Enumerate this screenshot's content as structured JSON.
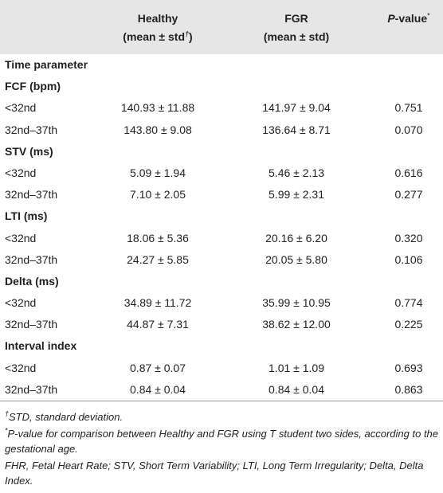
{
  "table": {
    "header": {
      "healthy": {
        "line1": "Healthy",
        "line2": "(mean ± std",
        "mark": "†",
        "close": ")"
      },
      "fgr": {
        "line1": "FGR",
        "line2": "(mean ± std)"
      },
      "pvalue": {
        "italic": "P",
        "rest": "-value",
        "mark": "*"
      }
    },
    "sections": [
      {
        "title": "Time parameter",
        "rows": []
      },
      {
        "title": "FCF (bpm)",
        "rows": [
          [
            "<32nd",
            "140.93 ± 11.88",
            "141.97 ± 9.04",
            "0.751"
          ],
          [
            "32nd–37th",
            "143.80 ± 9.08",
            "136.64 ± 8.71",
            "0.070"
          ]
        ]
      },
      {
        "title": "STV (ms)",
        "rows": [
          [
            "<32nd",
            "5.09 ± 1.94",
            "5.46 ± 2.13",
            "0.616"
          ],
          [
            "32nd–37th",
            "7.10 ± 2.05",
            "5.99 ± 2.31",
            "0.277"
          ]
        ]
      },
      {
        "title": "LTI (ms)",
        "rows": [
          [
            "<32nd",
            "18.06 ± 5.36",
            "20.16 ± 6.20",
            "0.320"
          ],
          [
            "32nd–37th",
            "24.27 ± 5.85",
            "20.05 ± 5.80",
            "0.106"
          ]
        ]
      },
      {
        "title": "Delta (ms)",
        "rows": [
          [
            "<32nd",
            "34.89 ± 11.72",
            "35.99 ± 10.95",
            "0.774"
          ],
          [
            "32nd–37th",
            "44.87 ± 7.31",
            "38.62 ± 12.00",
            "0.225"
          ]
        ]
      },
      {
        "title": "Interval index",
        "rows": [
          [
            "<32nd",
            "0.87 ± 0.07",
            "1.01 ± 1.09",
            "0.693"
          ],
          [
            "32nd–37th",
            "0.84 ± 0.04",
            "0.84 ± 0.04",
            "0.863"
          ]
        ]
      }
    ]
  },
  "footnotes": [
    {
      "mark": "†",
      "text": "STD, standard deviation."
    },
    {
      "mark": "*",
      "text": "P-value for comparison between Healthy and FGR using T student two sides, according to the gestational age."
    },
    {
      "mark": null,
      "text": "FHR, Fetal Heart Rate; STV, Short Term Variability; LTI, Long Term Irregularity; Delta, Delta Index."
    }
  ]
}
